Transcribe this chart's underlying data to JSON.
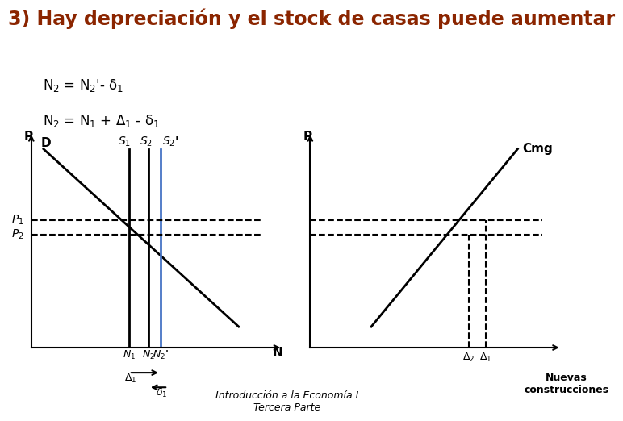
{
  "title": "3) Hay depreciación y el stock de casas puede aumentar",
  "title_color": "#8B2500",
  "title_fontsize": 17,
  "bg_color": "#FFFFFF",
  "formula1": "N$_2$ = N$_2$'- δ$_1$",
  "formula2": "N$_2$ = N$_1$ + Δ$_1$ - δ$_1$",
  "footer": "Introducción a la Economía I\nTercera Parte",
  "left_chart": {
    "xlabel": "N",
    "ylabel": "P",
    "x_axis": [
      0,
      10
    ],
    "y_axis": [
      0,
      10
    ],
    "D_line": {
      "x": [
        0.5,
        8.5
      ],
      "y": [
        9.5,
        1.0
      ],
      "label": "D"
    },
    "S1_x": 4.0,
    "S2_x": 4.8,
    "S2prime_x": 5.3,
    "P1_y": 6.1,
    "P2_y": 5.4,
    "N1_x": 4.0,
    "N2_x": 4.8,
    "N2prime_x": 5.3
  },
  "right_chart": {
    "xlabel": "Nuevas\nconstrucciones",
    "ylabel": "P",
    "x_axis": [
      0,
      10
    ],
    "y_axis": [
      0,
      10
    ],
    "Cmg_line": {
      "x": [
        2.5,
        8.5
      ],
      "y": [
        1.0,
        9.5
      ],
      "label": "Cmg"
    },
    "P1_y": 6.1,
    "P2_y": 5.4,
    "delta1_x": 7.2,
    "delta2_x": 6.5
  }
}
